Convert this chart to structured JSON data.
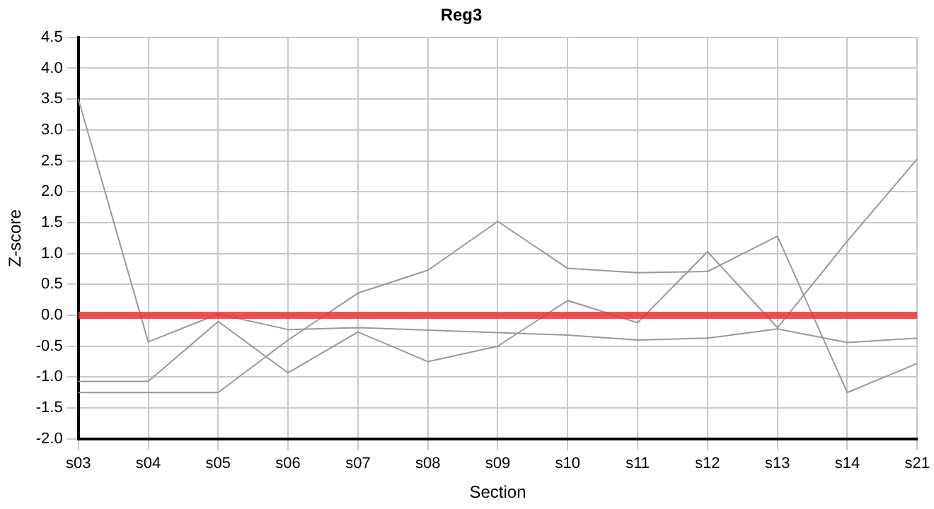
{
  "chart_data": {
    "type": "line",
    "title": "Reg3",
    "xlabel": "Section",
    "ylabel": "Z-score",
    "categories": [
      "s03",
      "s04",
      "s05",
      "s06",
      "s07",
      "s08",
      "s09",
      "s10",
      "s11",
      "s12",
      "s13",
      "s14",
      "s21"
    ],
    "series": [
      {
        "color": "#999999",
        "values": [
          3.5,
          -0.43,
          0.02,
          -0.23,
          -0.2,
          -0.24,
          -0.28,
          -0.32,
          -0.4,
          -0.37,
          -0.22,
          -0.44,
          -0.37
        ]
      },
      {
        "color": "#999999",
        "values": [
          -1.07,
          -1.07,
          -0.1,
          -0.93,
          -0.27,
          -0.75,
          -0.5,
          0.24,
          -0.12,
          1.03,
          -0.2,
          1.2,
          2.53
        ]
      },
      {
        "color": "#999999",
        "values": [
          -1.25,
          -1.25,
          -1.25,
          -0.4,
          0.36,
          0.73,
          1.52,
          0.76,
          0.69,
          0.71,
          1.28,
          -1.25,
          -0.78
        ]
      }
    ],
    "ylim": [
      -2,
      4.5
    ],
    "yticks": [
      {
        "value": -2,
        "label": "-2.0"
      },
      {
        "value": -1.5,
        "label": "-1.5"
      },
      {
        "value": -1,
        "label": "-1.0"
      },
      {
        "value": -0.5,
        "label": "-0.5"
      },
      {
        "value": 0,
        "label": "0.0"
      },
      {
        "value": 0.5,
        "label": "0.5"
      },
      {
        "value": 1,
        "label": "1.0"
      },
      {
        "value": 1.5,
        "label": "1.5"
      },
      {
        "value": 2,
        "label": "2.0"
      },
      {
        "value": 2.5,
        "label": "2.5"
      },
      {
        "value": 3,
        "label": "3.0"
      },
      {
        "value": 3.5,
        "label": "3.5"
      },
      {
        "value": 4,
        "label": "4.0"
      },
      {
        "value": 4.5,
        "label": "4.5"
      }
    ],
    "ref_lines": [
      {
        "axis": "y",
        "value": 0,
        "color": "#ee3333"
      }
    ],
    "grid": true,
    "legend": false,
    "marker": "none",
    "line_style": "solid"
  }
}
